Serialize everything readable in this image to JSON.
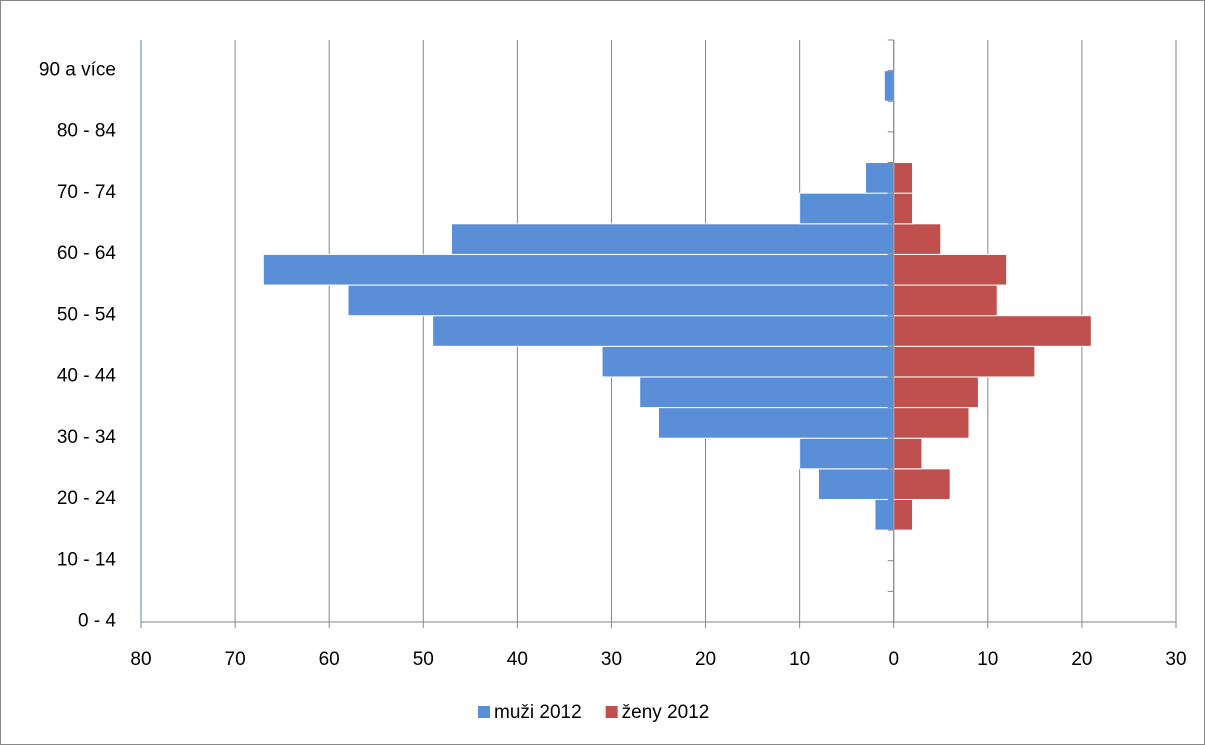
{
  "chart_data": {
    "type": "pyramid",
    "categories": [
      "0 - 4",
      null,
      "10 - 14",
      null,
      "20 - 24",
      null,
      "30 - 34",
      null,
      "40 - 44",
      null,
      "50 - 54",
      null,
      "60 - 64",
      null,
      "70 - 74",
      null,
      "80 - 84",
      null,
      "90 a více"
    ],
    "series": [
      {
        "name": "muži 2012",
        "color": "#5a8fd7",
        "values": [
          0,
          0,
          0,
          -2,
          -8,
          -10,
          -25,
          -27,
          -31,
          -49,
          -58,
          -67,
          -47,
          -10,
          -3,
          0,
          0,
          -1,
          0
        ]
      },
      {
        "name": "ženy 2012",
        "color": "#c0504d",
        "values": [
          0,
          0,
          0,
          2,
          6,
          3,
          8,
          9,
          15,
          21,
          11,
          12,
          5,
          2,
          2,
          0,
          0,
          0,
          0
        ]
      }
    ],
    "xlim": [
      -80,
      30
    ],
    "xticks": [
      {
        "value": -80,
        "label": "80"
      },
      {
        "value": -70,
        "label": "70"
      },
      {
        "value": -60,
        "label": "60"
      },
      {
        "value": -50,
        "label": "50"
      },
      {
        "value": -40,
        "label": "40"
      },
      {
        "value": -30,
        "label": "30"
      },
      {
        "value": -20,
        "label": "20"
      },
      {
        "value": -10,
        "label": "10"
      },
      0,
      10,
      20,
      30
    ],
    "grid": true,
    "legend": "bottom"
  }
}
